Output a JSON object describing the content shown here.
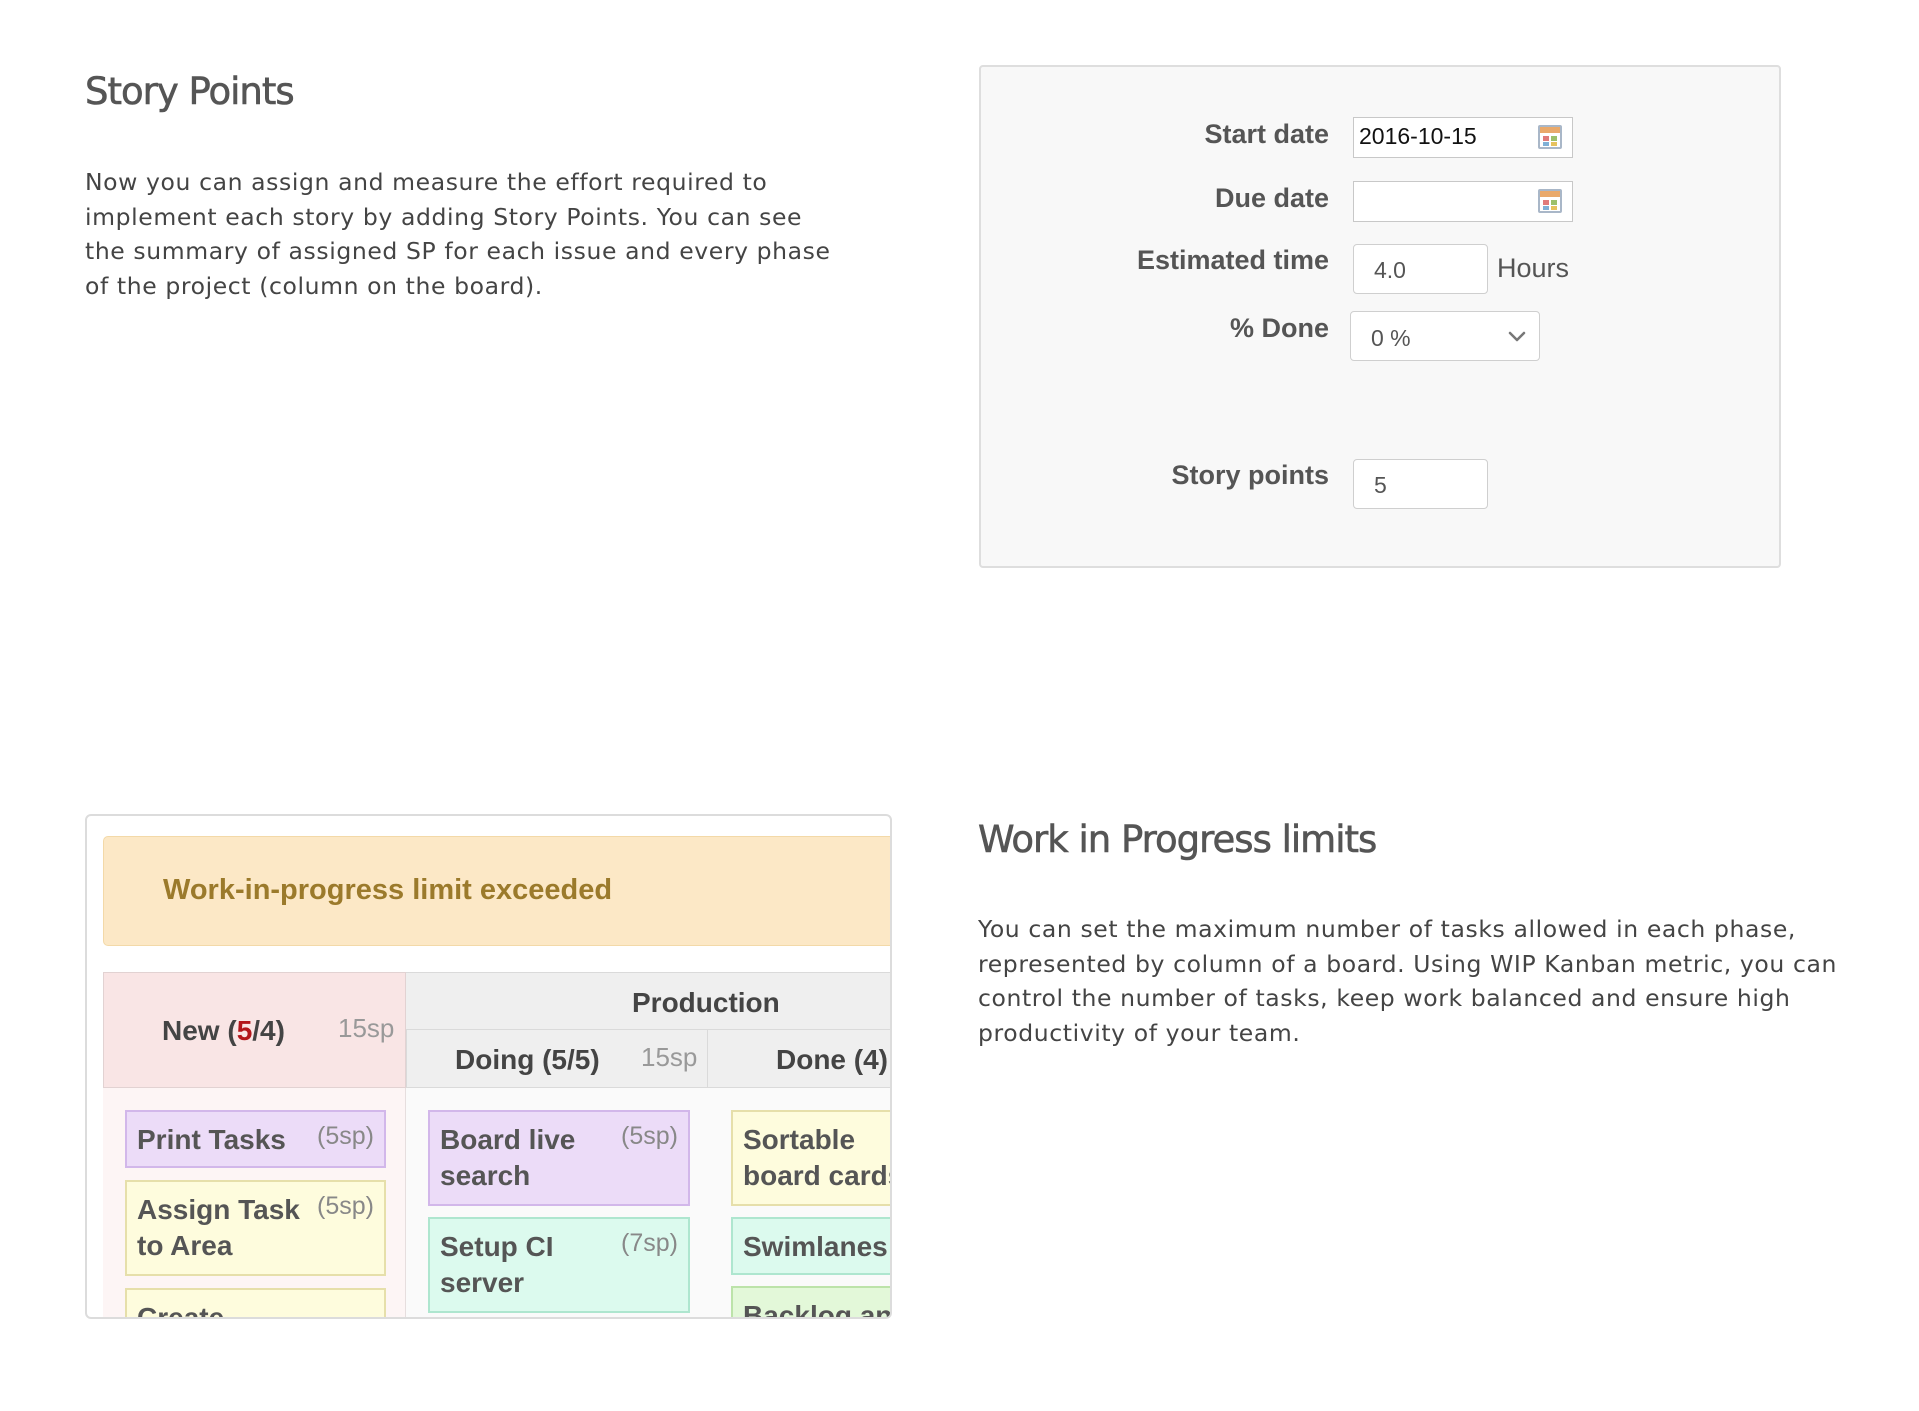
{
  "story_points": {
    "title": "Story Points",
    "description": "Now you can assign and measure the effort required to implement each story by adding Story Points. You can see the summary of assigned SP for each issue and every phase of the project (column on the board)."
  },
  "issue_form": {
    "start_date": {
      "label": "Start date",
      "value": "2016-10-15"
    },
    "due_date": {
      "label": "Due date",
      "value": ""
    },
    "estimated_time": {
      "label": "Estimated time",
      "value": "4.0",
      "unit": "Hours"
    },
    "percent_done": {
      "label": "% Done",
      "value": "0 %"
    },
    "story_points": {
      "label": "Story points",
      "value": "5"
    }
  },
  "wip": {
    "title": "Work in Progress limits",
    "description": "You can set the maximum number of tasks allowed in each phase, represented by column of a board. Using WIP Kanban metric, you can control the number of tasks, keep work balanced and ensure high productivity of your team."
  },
  "board": {
    "alert": "Work-in-progress limit exceeded",
    "new_col": {
      "prefix": "New (",
      "count": "5",
      "suffix": "/4)",
      "sp": "15sp"
    },
    "production": "Production",
    "doing_col": {
      "title": "Doing (5/5)",
      "sp": "15sp"
    },
    "done_col": {
      "title": "Done (4)"
    },
    "cards": {
      "print_tasks": {
        "title": "Print Tasks",
        "sp": "(5sp)"
      },
      "assign_task": {
        "line1": "Assign Task",
        "line2": "to Area",
        "sp": "(5sp)"
      },
      "create": {
        "title": "Create"
      },
      "board_live": {
        "line1": "Board live",
        "line2": "search",
        "sp": "(5sp)"
      },
      "setup_ci": {
        "line1": "Setup CI",
        "line2": "server",
        "sp": "(7sp)"
      },
      "sortable": {
        "line1": "Sortable",
        "line2": "board cards"
      },
      "swimlanes": {
        "title": "Swimlanes"
      },
      "backlog": {
        "title": "Backlog and"
      }
    }
  }
}
